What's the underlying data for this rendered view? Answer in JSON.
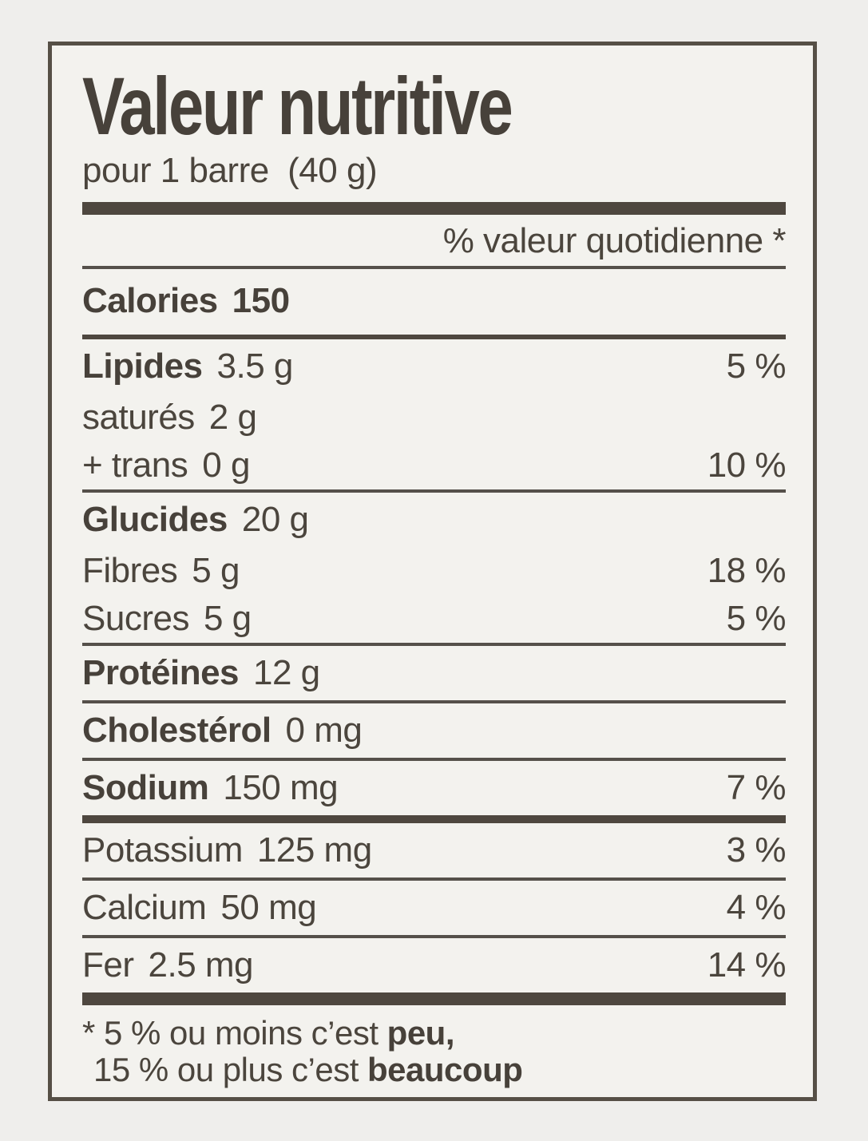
{
  "label": {
    "title": "Valeur nutritive",
    "serving": "pour 1 barre  (40 g)",
    "daily_value_header": "% valeur quotidienne *",
    "calories": {
      "name": "Calories",
      "value": "150"
    },
    "rows": [
      {
        "name": "Lipides",
        "value": "3.5 g",
        "pct": "5 %"
      },
      {
        "name": "saturés",
        "value": "2 g",
        "pct": ""
      },
      {
        "name": "+ trans",
        "value": "0 g",
        "pct": "10 %"
      },
      {
        "name": "Glucides",
        "value": "20 g",
        "pct": ""
      },
      {
        "name": "Fibres",
        "value": "5 g",
        "pct": "18 %"
      },
      {
        "name": "Sucres",
        "value": "5 g",
        "pct": "5 %"
      },
      {
        "name": "Protéines",
        "value": "12 g",
        "pct": ""
      },
      {
        "name": "Cholestérol",
        "value": "0 mg",
        "pct": ""
      },
      {
        "name": "Sodium",
        "value": "150 mg",
        "pct": "7 %"
      },
      {
        "name": "Potassium",
        "value": "125 mg",
        "pct": "3 %"
      },
      {
        "name": "Calcium",
        "value": "50 mg",
        "pct": "4 %"
      },
      {
        "name": "Fer",
        "value": "2.5 mg",
        "pct": "14 %"
      }
    ],
    "footnote": {
      "line1_prefix": "* 5 % ou moins c’est ",
      "line1_bold": "peu,",
      "line2_prefix": "15 % ou plus c’est ",
      "line2_bold": "beaucoup"
    },
    "colors": {
      "ink": "#4b453d",
      "paper": "#f3f2ee",
      "page_background": "#efeeec",
      "border": "#564f46"
    }
  }
}
